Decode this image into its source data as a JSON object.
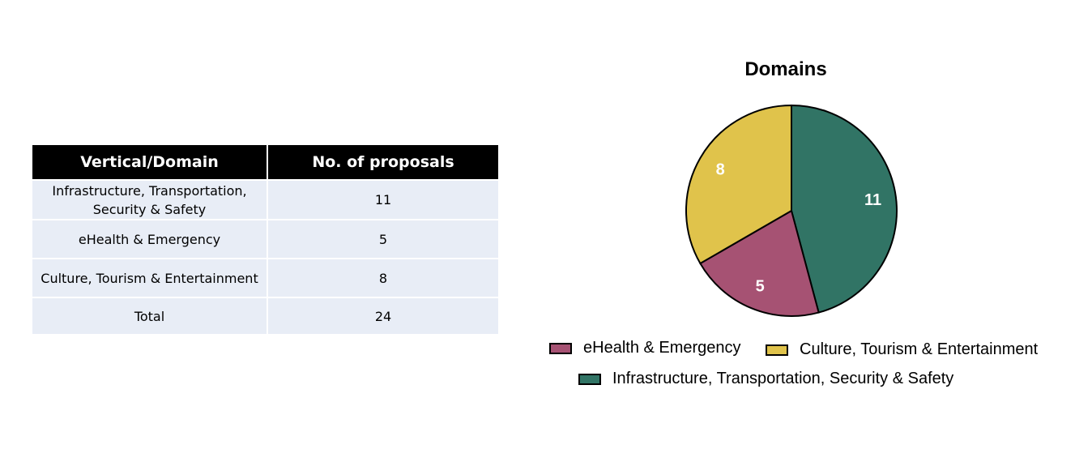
{
  "table": {
    "headers": [
      "Vertical/Domain",
      "No. of proposals"
    ],
    "rows": [
      {
        "domain": "Infrastructure, Transportation, Security & Safety",
        "count": "11"
      },
      {
        "domain": "eHealth & Emergency",
        "count": "5"
      },
      {
        "domain": "Culture, Tourism & Entertainment",
        "count": "8"
      },
      {
        "domain": "Total",
        "count": "24"
      }
    ]
  },
  "chart_data": {
    "type": "pie",
    "title": "Domains",
    "slices": [
      {
        "label": "Infrastructure, Transportation, Security & Safety",
        "value": 11,
        "color": "#317465"
      },
      {
        "label": "eHealth & Emergency",
        "value": 5,
        "color": "#a65273"
      },
      {
        "label": "Culture, Tourism & Entertainment",
        "value": 8,
        "color": "#e0c34b"
      }
    ],
    "legend": {
      "position": "bottom",
      "entries": [
        "eHealth & Emergency",
        "Culture, Tourism & Entertainment",
        "Infrastructure, Transportation, Security & Safety"
      ]
    },
    "label_color": "#ffffff"
  }
}
